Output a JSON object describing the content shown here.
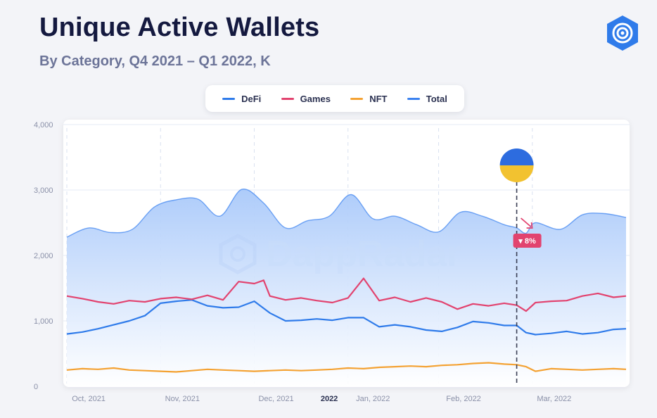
{
  "header": {
    "title": "Unique Active Wallets",
    "subtitle": "By Category, Q4 2021 – Q1 2022, K",
    "logo_icon": "dappradar-logo-icon"
  },
  "watermark": {
    "text": "DappRadar"
  },
  "colors": {
    "DeFi": "#2f7bea",
    "Games": "#e2436f",
    "NFT": "#f4a233",
    "Total": "#3b82f0",
    "total_fill": "#bfd6fb",
    "badge": "#e2436f",
    "flag_blue": "#2d6cdf",
    "flag_yellow": "#f2c230"
  },
  "chart_data": {
    "type": "area",
    "title": "Unique Active Wallets",
    "subtitle": "By Category, Q4 2021 – Q1 2022, K",
    "ylim": [
      0,
      4000
    ],
    "yticks": [
      "4,000",
      "3,000",
      "2,000",
      "1,000",
      "0"
    ],
    "ytick_values": [
      4000,
      3000,
      2000,
      1000,
      0
    ],
    "xticks": [
      {
        "label": "Oct, 2021",
        "x": 7,
        "bold": false
      },
      {
        "label": "Nov, 2021",
        "x": 37,
        "bold": false
      },
      {
        "label": "Dec, 2021",
        "x": 67,
        "bold": false
      },
      {
        "label": "2022",
        "x": 84,
        "bold": true
      },
      {
        "label": "Jan, 2022",
        "x": 98,
        "bold": false
      },
      {
        "label": "Feb, 2022",
        "x": 127,
        "bold": false
      },
      {
        "label": "Mar, 2022",
        "x": 156,
        "bold": false
      }
    ],
    "vertical_gridlines_x": [
      0,
      30,
      60,
      90,
      119,
      149
    ],
    "grid": true,
    "legend_position": "top",
    "annotation": {
      "label": "▾ 8%",
      "x": 144,
      "marker": "ukraine-flag"
    },
    "series": [
      {
        "name": "Total",
        "x": [
          0,
          7,
          14,
          21,
          28,
          35,
          42,
          49,
          56,
          63,
          70,
          77,
          84,
          91,
          98,
          105,
          112,
          119,
          126,
          133,
          140,
          144,
          147,
          150,
          158,
          165,
          172,
          179
        ],
        "values": [
          2280,
          2420,
          2350,
          2400,
          2740,
          2850,
          2860,
          2600,
          3010,
          2800,
          2420,
          2530,
          2600,
          2930,
          2560,
          2600,
          2470,
          2360,
          2660,
          2600,
          2470,
          2420,
          2340,
          2500,
          2400,
          2620,
          2640,
          2580
        ]
      },
      {
        "name": "Games",
        "x": [
          0,
          5,
          10,
          15,
          20,
          25,
          30,
          35,
          40,
          45,
          50,
          55,
          60,
          63,
          65,
          70,
          75,
          80,
          85,
          90,
          95,
          100,
          105,
          110,
          115,
          120,
          125,
          130,
          135,
          140,
          144,
          147,
          150,
          155,
          160,
          165,
          170,
          175,
          179
        ],
        "values": [
          1380,
          1340,
          1290,
          1260,
          1310,
          1290,
          1340,
          1360,
          1330,
          1390,
          1320,
          1600,
          1570,
          1620,
          1380,
          1320,
          1350,
          1310,
          1280,
          1350,
          1650,
          1310,
          1360,
          1290,
          1350,
          1290,
          1180,
          1260,
          1230,
          1270,
          1240,
          1150,
          1280,
          1300,
          1310,
          1380,
          1420,
          1360,
          1380
        ]
      },
      {
        "name": "DeFi",
        "x": [
          0,
          5,
          10,
          15,
          20,
          25,
          30,
          35,
          40,
          45,
          50,
          55,
          60,
          65,
          70,
          75,
          80,
          85,
          90,
          95,
          100,
          105,
          110,
          115,
          120,
          125,
          130,
          135,
          140,
          144,
          147,
          150,
          155,
          160,
          165,
          170,
          175,
          179
        ],
        "values": [
          800,
          830,
          880,
          940,
          1000,
          1080,
          1270,
          1300,
          1320,
          1230,
          1200,
          1210,
          1300,
          1120,
          1000,
          1010,
          1030,
          1010,
          1050,
          1050,
          910,
          940,
          910,
          860,
          840,
          900,
          990,
          970,
          930,
          930,
          820,
          790,
          810,
          840,
          800,
          820,
          870,
          880
        ]
      },
      {
        "name": "NFT",
        "x": [
          0,
          5,
          10,
          15,
          20,
          25,
          30,
          35,
          40,
          45,
          50,
          55,
          60,
          65,
          70,
          75,
          80,
          85,
          90,
          95,
          100,
          105,
          110,
          115,
          120,
          125,
          130,
          135,
          140,
          144,
          147,
          150,
          155,
          160,
          165,
          170,
          175,
          179
        ],
        "values": [
          250,
          270,
          260,
          280,
          250,
          240,
          230,
          220,
          240,
          260,
          250,
          240,
          230,
          240,
          250,
          240,
          250,
          260,
          280,
          270,
          290,
          300,
          310,
          300,
          320,
          330,
          350,
          360,
          340,
          330,
          300,
          230,
          270,
          260,
          250,
          260,
          270,
          260
        ]
      }
    ]
  }
}
